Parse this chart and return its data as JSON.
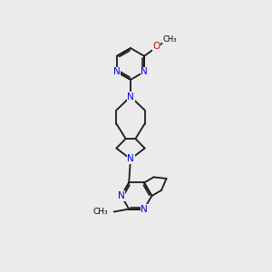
{
  "bg_color": "#ebebeb",
  "bond_color": "#1a1a1a",
  "N_color": "#0000ee",
  "O_color": "#dd0000",
  "font_size_atom": 7.5,
  "line_width": 1.3,
  "fig_size": [
    3.0,
    3.0
  ],
  "dpi": 100,
  "xlim": [
    3.5,
    8.5
  ],
  "ylim": [
    1.2,
    11.2
  ]
}
